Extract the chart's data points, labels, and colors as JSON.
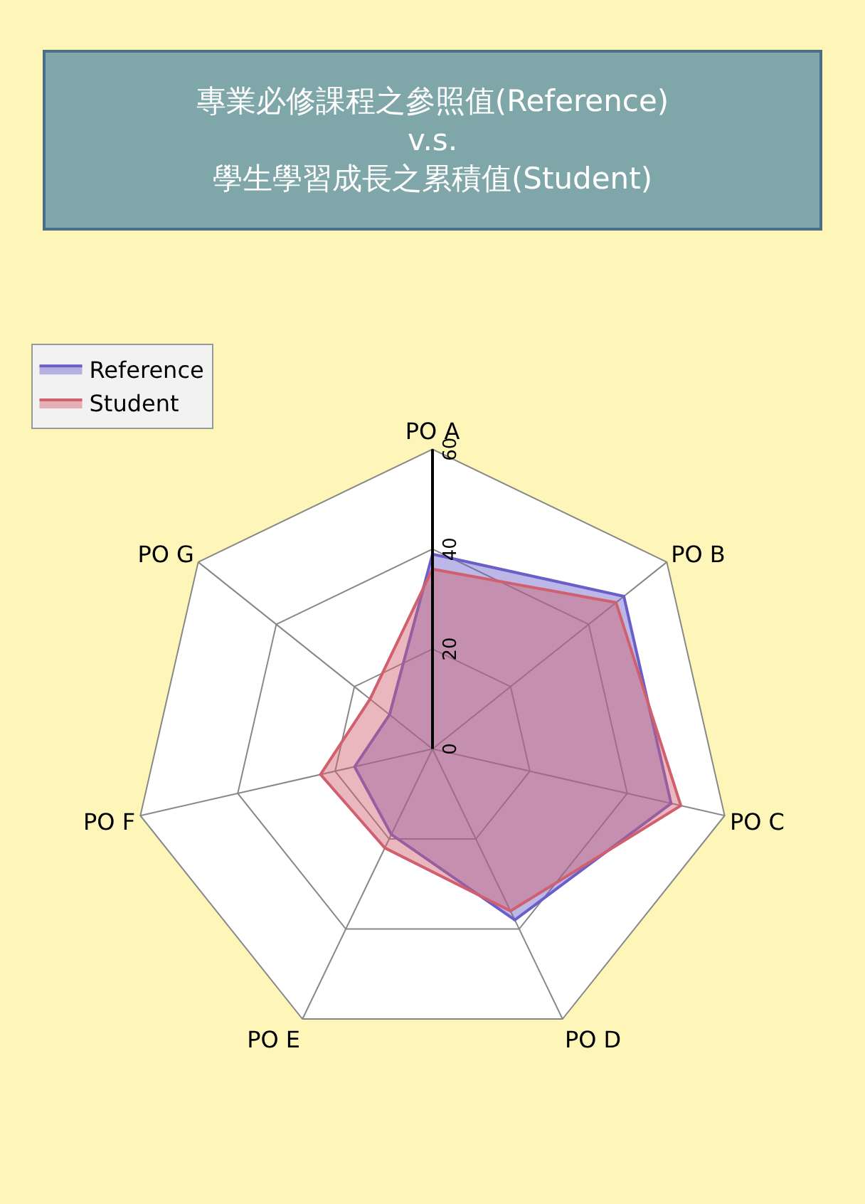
{
  "chart_data": {
    "type": "radar",
    "title": "專業必修課程之參照值(Reference)\nv.s.\n學生學習成長之累積值(Student)",
    "categories": [
      "PO A",
      "PO B",
      "PO C",
      "PO D",
      "PO E",
      "PO F",
      "PO G"
    ],
    "series": [
      {
        "name": "Reference",
        "color": "#6a5fc8",
        "values": [
          39,
          49,
          49,
          38,
          19,
          16,
          11
        ]
      },
      {
        "name": "Student",
        "color": "#d0606e",
        "values": [
          36,
          47,
          51,
          36,
          22,
          23,
          16
        ]
      }
    ],
    "ylim": [
      0,
      60
    ],
    "yticks": [
      0,
      20,
      40,
      60
    ],
    "legend": "top left",
    "grid": true
  }
}
